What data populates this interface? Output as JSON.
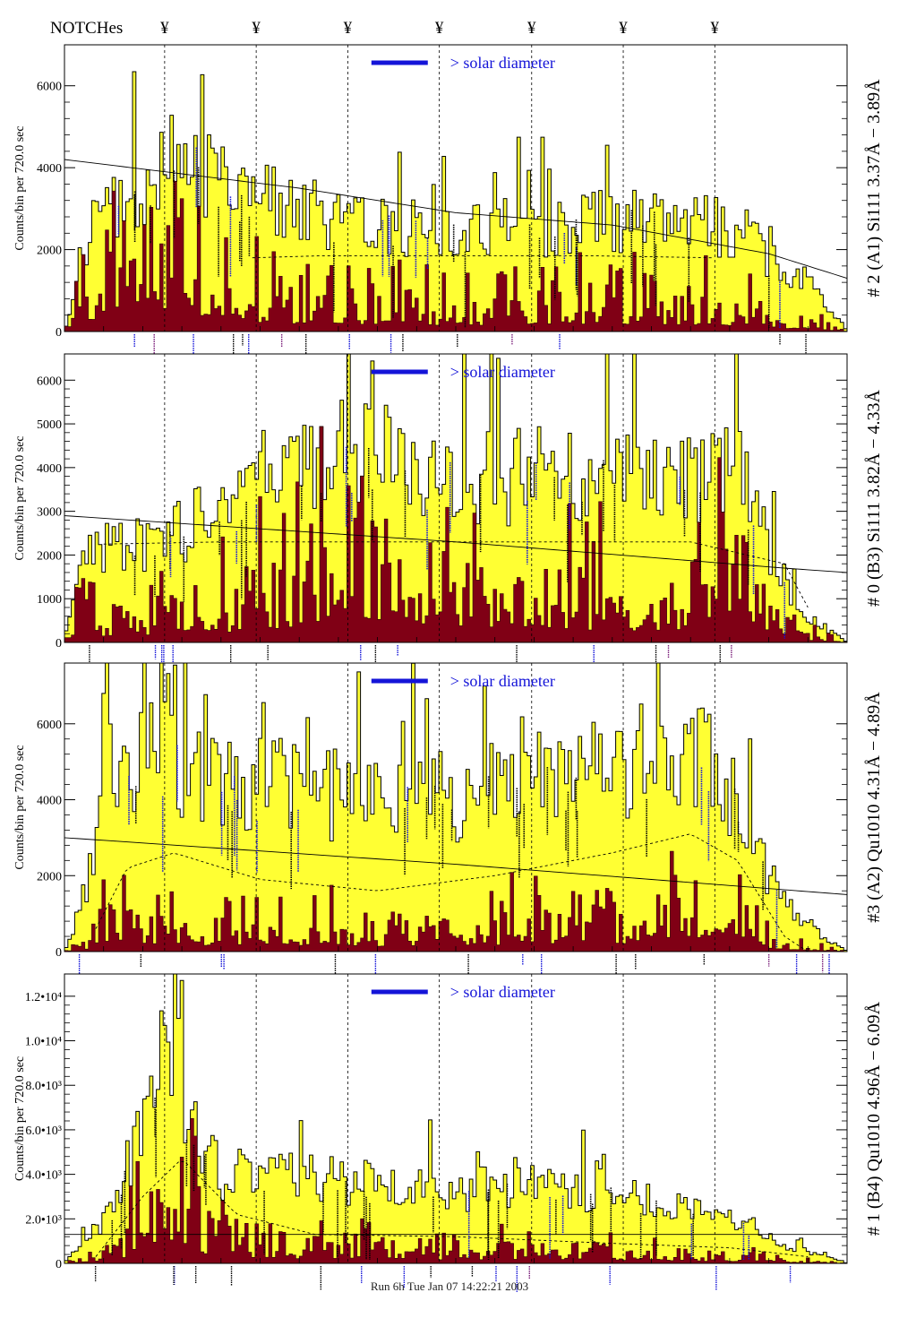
{
  "header": {
    "label": "NOTCHes",
    "notch_symbol": "¥"
  },
  "notches_x": [
    0.128,
    0.245,
    0.362,
    0.479,
    0.597,
    0.714,
    0.831
  ],
  "colors": {
    "fill": "#ffff33",
    "dark": "#800015",
    "line": "#000000",
    "blue": "#1414d8",
    "purple": "#7a1e7a"
  },
  "footer": {
    "text": "Run 6h Tue Jan 07 14:22:21 2003"
  },
  "chart_data": [
    {
      "type": "bar",
      "id": "panel-a1",
      "title": "# 2 (A1) Si111  3.37Å − 3.89Å",
      "ylabel": "Counts/bin per   720.0 sec",
      "legend": "> solar diameter",
      "ylim": [
        0,
        7000
      ],
      "ticks": [
        0,
        2000,
        4000,
        6000
      ],
      "tick_labels": [
        "0",
        "2000",
        "4000",
        "6000"
      ],
      "x": [
        0.0,
        0.02,
        0.05,
        0.1,
        0.14,
        0.2,
        0.3,
        0.4,
        0.5,
        0.6,
        0.7,
        0.8,
        0.87,
        0.91,
        0.95,
        1.0
      ],
      "top": [
        0,
        1800,
        3500,
        3900,
        5200,
        3900,
        3300,
        3000,
        2800,
        2900,
        3100,
        3000,
        2600,
        1800,
        1500,
        0
      ],
      "dark": [
        0,
        1200,
        1500,
        2200,
        3000,
        1200,
        900,
        800,
        700,
        900,
        900,
        800,
        700,
        400,
        300,
        0
      ],
      "ref_x": [
        0.0,
        0.3,
        0.5,
        0.7,
        0.9,
        1.0
      ],
      "ref": [
        4200,
        3500,
        2900,
        2600,
        1900,
        1300
      ],
      "dash_x": [
        0.24,
        0.33,
        0.5,
        0.67,
        0.83
      ],
      "dash": [
        1800,
        1850,
        1850,
        1850,
        1800
      ]
    },
    {
      "type": "bar",
      "id": "panel-b3",
      "title": "# 0 (B3) Si111  3.82Å − 4.33Å",
      "ylabel": "Counts/bin per   720.0 sec",
      "legend": "> solar diameter",
      "ylim": [
        0,
        6600
      ],
      "ticks": [
        0,
        1000,
        2000,
        3000,
        4000,
        5000,
        6000
      ],
      "tick_labels": [
        "0",
        "1000",
        "2000",
        "3000",
        "4000",
        "5000",
        "6000"
      ],
      "x": [
        0.0,
        0.02,
        0.05,
        0.1,
        0.2,
        0.3,
        0.35,
        0.4,
        0.5,
        0.6,
        0.7,
        0.8,
        0.85,
        0.9,
        0.94,
        1.0
      ],
      "top": [
        0,
        2200,
        2400,
        2500,
        3300,
        4200,
        5000,
        4700,
        4200,
        4300,
        4400,
        4300,
        4800,
        2400,
        800,
        0
      ],
      "dark": [
        0,
        900,
        700,
        800,
        1100,
        1800,
        3000,
        2600,
        1600,
        1700,
        1300,
        1400,
        2700,
        1000,
        300,
        0
      ],
      "ref_x": [
        0.0,
        0.5,
        0.92,
        1.0
      ],
      "ref": [
        2900,
        2300,
        1700,
        1600
      ],
      "dash_x": [
        0.05,
        0.2,
        0.5,
        0.8,
        0.92,
        0.95
      ],
      "dash": [
        2250,
        2300,
        2300,
        2300,
        1800,
        800
      ]
    },
    {
      "type": "bar",
      "id": "panel-a2",
      "title": "#3 (A2) Qu1010  4.31Å − 4.89Å",
      "ylabel": "Counts/bin per   720.0 sec",
      "legend": "> solar diameter",
      "ylim": [
        0,
        7600
      ],
      "ticks": [
        0,
        2000,
        4000,
        6000
      ],
      "tick_labels": [
        "0",
        "2000",
        "4000",
        "6000"
      ],
      "x": [
        0.0,
        0.03,
        0.06,
        0.1,
        0.15,
        0.2,
        0.3,
        0.4,
        0.5,
        0.6,
        0.7,
        0.8,
        0.86,
        0.9,
        0.95,
        1.0
      ],
      "top": [
        0,
        2000,
        5600,
        6000,
        5600,
        5200,
        4700,
        4400,
        4600,
        5000,
        5400,
        6200,
        4600,
        2200,
        800,
        0
      ],
      "dark": [
        0,
        300,
        1500,
        900,
        800,
        700,
        800,
        700,
        800,
        900,
        900,
        1600,
        1200,
        400,
        150,
        0
      ],
      "ref_x": [
        0.0,
        0.5,
        1.0
      ],
      "ref": [
        3000,
        2300,
        1500
      ],
      "dash_x": [
        0.04,
        0.08,
        0.14,
        0.25,
        0.4,
        0.55,
        0.7,
        0.8,
        0.86,
        0.92,
        0.95
      ],
      "dash": [
        600,
        2200,
        2600,
        1900,
        1600,
        2000,
        2600,
        3100,
        2400,
        400,
        0
      ]
    },
    {
      "type": "bar",
      "id": "panel-b4",
      "title": "# 1 (B4) Qu1010 4.96Å − 6.09Å",
      "ylabel": "Counts/bin per   720.0 sec",
      "legend": "> solar diameter",
      "ylim": [
        0,
        13000
      ],
      "ticks": [
        0,
        2000,
        4000,
        6000,
        8000,
        10000,
        12000
      ],
      "tick_labels": [
        "0",
        "2.0•10³",
        "4.0•10³",
        "6.0•10³",
        "8.0•10³",
        "1.0•10⁴",
        "1.2•10⁴"
      ],
      "x": [
        0.0,
        0.03,
        0.06,
        0.1,
        0.12,
        0.15,
        0.2,
        0.3,
        0.4,
        0.5,
        0.6,
        0.7,
        0.8,
        0.87,
        0.93,
        1.0
      ],
      "top": [
        0,
        1500,
        2500,
        7000,
        10500,
        8000,
        4500,
        4200,
        4000,
        3700,
        3800,
        3600,
        2700,
        2000,
        800,
        0
      ],
      "dark": [
        0,
        300,
        500,
        2500,
        4500,
        3500,
        1300,
        1000,
        900,
        800,
        800,
        700,
        500,
        400,
        150,
        0
      ],
      "ref_x": [
        0.0,
        1.0
      ],
      "ref": [
        1300,
        1300
      ],
      "dash_x": [
        0.04,
        0.1,
        0.15,
        0.22,
        0.32,
        0.5,
        0.7,
        0.85,
        0.95
      ],
      "dash": [
        300,
        3000,
        4700,
        2200,
        1300,
        1200,
        900,
        700,
        300
      ]
    }
  ]
}
